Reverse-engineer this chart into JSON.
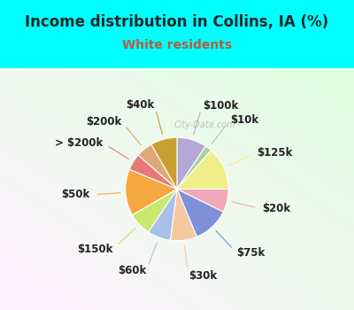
{
  "title": "Income distribution in Collins, IA (%)",
  "subtitle": "White residents",
  "bg_top_color": "#00FFFF",
  "chart_bg_left": "#c8e8d8",
  "chart_bg_right": "#f0f8ff",
  "watermark": "City-Data.com",
  "labels": [
    "$100k",
    "$10k",
    "$125k",
    "$20k",
    "$75k",
    "$30k",
    "$60k",
    "$150k",
    "$50k",
    "> $200k",
    "$200k",
    "$40k"
  ],
  "sizes": [
    9,
    2,
    13,
    7,
    11,
    8,
    7,
    7,
    14,
    5,
    5,
    8
  ],
  "colors": [
    "#b3a8d8",
    "#aad0a0",
    "#f0ee88",
    "#f0a8b8",
    "#8090d8",
    "#f5c8a0",
    "#a8c0e8",
    "#c8e870",
    "#f5a840",
    "#e87878",
    "#e0a878",
    "#c8a030"
  ],
  "label_fontsize": 8.5,
  "title_fontsize": 12,
  "subtitle_fontsize": 10,
  "subtitle_color": "#b06040",
  "title_color": "#202828"
}
